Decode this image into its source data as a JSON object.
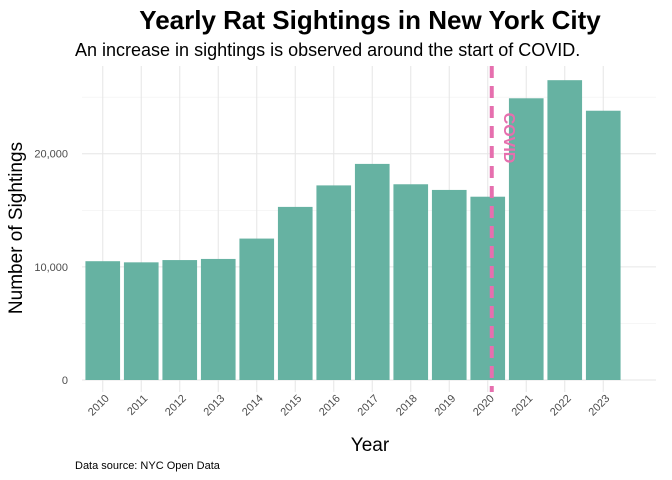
{
  "chart_data": {
    "type": "bar",
    "title": "Yearly Rat Sightings in New York City",
    "subtitle": "An increase in sightings is observed around the start of COVID.",
    "xlabel": "Year",
    "ylabel": "Number of Sightings",
    "caption": "Data source: NYC Open Data",
    "categories": [
      "2010",
      "2011",
      "2012",
      "2013",
      "2014",
      "2015",
      "2016",
      "2017",
      "2018",
      "2019",
      "2020",
      "2021",
      "2022",
      "2023"
    ],
    "values": [
      10500,
      10400,
      10600,
      10700,
      12500,
      15300,
      17200,
      19100,
      17300,
      16800,
      16200,
      24900,
      26500,
      23800
    ],
    "ylim": [
      0,
      27000
    ],
    "yticks": [
      0,
      10000,
      20000
    ],
    "ytick_labels": [
      "0",
      "10,000",
      "20,000"
    ],
    "bar_color": "#66b2a2",
    "grid": true,
    "annotation": {
      "label": "COVID",
      "x": "2020",
      "color": "#e66fae",
      "style": "dashed"
    }
  }
}
